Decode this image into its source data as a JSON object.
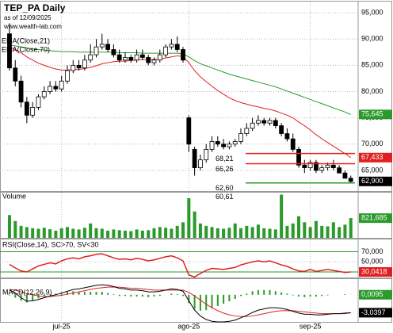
{
  "chart_data": {
    "type": "candlestick",
    "title": "TEP_PA Daily",
    "subtitle": "as of 12/09/2025",
    "source": "www.wealth-lab.com",
    "xlim": [
      -1.64,
      60.27
    ],
    "xticks": [
      {
        "value": 9,
        "label": "jul-25"
      },
      {
        "value": 31,
        "label": "ago-25"
      },
      {
        "value": 52,
        "label": "sep-25"
      }
    ],
    "price": {
      "ylim": [
        61.06,
        97.28
      ],
      "yticks": [
        {
          "value": 95,
          "label": "95,000"
        },
        {
          "value": 90,
          "label": "90,000"
        },
        {
          "value": 85,
          "label": "85,000"
        },
        {
          "value": 80,
          "label": "80,000"
        },
        {
          "value": 75,
          "label": "75,000"
        },
        {
          "value": 70,
          "label": "70,000"
        },
        {
          "value": 65,
          "label": "65,000"
        }
      ],
      "up_color": "#ffffff",
      "down_color": "#000000",
      "open": [
        91,
        84.5,
        82,
        78,
        75.5,
        77,
        79,
        80,
        81,
        80.5,
        82,
        84,
        85,
        84.5,
        86,
        87,
        88.5,
        89,
        88,
        87,
        86,
        86.5,
        86,
        87,
        86.5,
        85.5,
        86,
        87,
        88.5,
        89,
        88,
        75,
        69,
        65.5,
        67,
        69,
        70.5,
        70,
        69.5,
        70,
        70.5,
        72,
        73,
        74,
        74.5,
        74,
        74.5,
        73.5,
        72,
        71,
        69,
        66,
        65.5,
        66.5,
        65,
        65.5,
        66,
        65.5,
        64.5,
        63.5
      ],
      "high": [
        93,
        86,
        83,
        79,
        78,
        79.5,
        81,
        82,
        82,
        83,
        85,
        86,
        86,
        87,
        89,
        90,
        91,
        90,
        89,
        88,
        87.5,
        87,
        88,
        88,
        87,
        86.5,
        88,
        89,
        90,
        90.5,
        88.5,
        75.5,
        69.5,
        68,
        70,
        71.5,
        71.5,
        71,
        70.5,
        71,
        73,
        74,
        75,
        75.5,
        75,
        75,
        75,
        74,
        73,
        72,
        69.5,
        67,
        67,
        67,
        66,
        66.5,
        67,
        66,
        65,
        64
      ],
      "low": [
        84,
        81,
        77,
        74,
        75,
        76.5,
        78.5,
        79.5,
        80,
        80,
        81.5,
        83.5,
        84,
        84,
        85.5,
        86.5,
        88,
        87.5,
        86.5,
        85.5,
        85.5,
        85.5,
        85.5,
        86,
        85,
        85,
        85.5,
        86.5,
        88,
        87.5,
        85.5,
        68.5,
        64,
        65,
        66.5,
        68.5,
        69.5,
        69,
        69,
        69.5,
        70,
        71.5,
        72.5,
        73.5,
        73.5,
        73.5,
        73,
        71.5,
        70.5,
        68.5,
        65.5,
        64.5,
        65,
        64.5,
        64.5,
        65,
        65,
        64.5,
        63.5,
        62.5
      ],
      "close": [
        84.5,
        82,
        78,
        75.5,
        77,
        79,
        80,
        81,
        80.5,
        82,
        84,
        85,
        84.5,
        86,
        87,
        88.5,
        89,
        88,
        87,
        86,
        86.5,
        86,
        87,
        86.5,
        85.5,
        86,
        87,
        88.5,
        89,
        88,
        86,
        70,
        65.5,
        67,
        69,
        70.5,
        70,
        69.5,
        70,
        70.5,
        72,
        73,
        74,
        74.5,
        74,
        74.5,
        73.5,
        72,
        71,
        69,
        66,
        65.5,
        66.5,
        65,
        65.5,
        66,
        65.5,
        64.5,
        63.5,
        62.9
      ],
      "close_label": "62,900",
      "close_label_color": "#000000"
    },
    "ema": [
      {
        "name": "EMA(Close,21)",
        "color": "#e02020",
        "value_label": "67,433",
        "values": [
          88.5,
          88,
          87.4,
          86.6,
          86,
          85.4,
          85,
          84.6,
          84.3,
          84.1,
          84.1,
          84.2,
          84.2,
          84.4,
          84.6,
          84.9,
          85.3,
          85.5,
          85.7,
          85.8,
          85.8,
          85.9,
          86,
          86.1,
          86.1,
          86.1,
          86.2,
          86.4,
          86.6,
          86.8,
          86.7,
          85.5,
          84,
          82.8,
          81.9,
          81,
          80.2,
          79.5,
          78.8,
          78.3,
          77.9,
          77.6,
          77.3,
          77.1,
          76.8,
          76.6,
          76.3,
          75.9,
          75.5,
          75,
          74.2,
          73.5,
          72.7,
          71.8,
          71,
          70.3,
          69.6,
          68.9,
          68.2,
          67.433
        ]
      },
      {
        "name": "EMA(Close,70)",
        "color": "#2a9a2a",
        "value_label": "75,645",
        "values": [
          88.8,
          88.7,
          88.5,
          88.3,
          88.1,
          88,
          87.9,
          87.8,
          87.7,
          87.6,
          87.6,
          87.6,
          87.5,
          87.5,
          87.5,
          87.5,
          87.5,
          87.5,
          87.5,
          87.4,
          87.4,
          87.4,
          87.4,
          87.3,
          87.3,
          87.3,
          87.3,
          87.3,
          87.3,
          87.3,
          87.2,
          86.6,
          85.9,
          85.3,
          84.9,
          84.5,
          84.1,
          83.7,
          83.3,
          83,
          82.7,
          82.4,
          82.1,
          81.8,
          81.5,
          81.2,
          80.9,
          80.5,
          80.1,
          79.7,
          79.3,
          78.9,
          78.5,
          78.1,
          77.7,
          77.3,
          76.9,
          76.5,
          76.1,
          75.645
        ]
      }
    ],
    "levels": [
      {
        "value": 68.21,
        "label": "68,21",
        "color": "#e02020"
      },
      {
        "value": 66.26,
        "label": "66,26",
        "color": "#e02020"
      },
      {
        "value": 62.6,
        "label": "62,60",
        "color": "#2a9a2a"
      }
    ],
    "low_annotation": {
      "value": 60.61,
      "label": "60,61"
    },
    "volume": {
      "title": "Volume",
      "color": "#2a9a2a",
      "ylim": [
        0,
        1850000
      ],
      "value_label": "821,685",
      "values": [
        950000,
        700000,
        500000,
        450000,
        400000,
        380000,
        420000,
        360000,
        300000,
        400000,
        450000,
        380000,
        350000,
        420000,
        600000,
        400000,
        380000,
        300000,
        350000,
        320000,
        300000,
        280000,
        350000,
        300000,
        320000,
        400000,
        450000,
        420000,
        380000,
        500000,
        650000,
        1650000,
        1100000,
        600000,
        500000,
        450000,
        400000,
        380000,
        420000,
        600000,
        400000,
        500000,
        450000,
        550000,
        400000,
        380000,
        350000,
        1800000,
        500000,
        600000,
        900000,
        650000,
        450000,
        700000,
        500000,
        480000,
        650000,
        450000,
        550000,
        821685
      ]
    },
    "rsi": {
      "title": "RSI(Close,14), SC>70, SV<30",
      "color": "#e02020",
      "level_color": "#2a9a2a",
      "ylim": [
        19,
        96
      ],
      "yticks": [
        {
          "value": 70,
          "label": "70,000"
        },
        {
          "value": 50,
          "label": "50,000"
        },
        {
          "value": 30,
          "label": "30,000"
        }
      ],
      "levels": [
        70,
        30
      ],
      "value_label": "30,0418",
      "values": [
        45,
        38,
        32,
        30,
        36,
        42,
        45,
        48,
        46,
        52,
        56,
        58,
        56,
        60,
        62,
        65,
        66,
        62,
        58,
        55,
        56,
        54,
        57,
        55,
        52,
        54,
        57,
        60,
        62,
        58,
        52,
        24,
        20,
        27,
        33,
        37,
        36,
        35,
        37,
        39,
        44,
        47,
        50,
        52,
        50,
        52,
        48,
        44,
        41,
        36,
        32,
        31,
        35,
        31,
        33,
        35,
        33,
        31,
        29,
        30.0418
      ]
    },
    "macd": {
      "title": "MACD(12,26,9)",
      "ylim": [
        -4.6,
        2.8
      ],
      "macd": {
        "color": "#000000",
        "value_label": "-3,0397",
        "values": [
          0.8,
          0.3,
          -0.5,
          -1.1,
          -1.0,
          -0.8,
          -0.5,
          -0.2,
          0.0,
          0.3,
          0.6,
          0.9,
          1.0,
          1.2,
          1.4,
          1.6,
          1.7,
          1.6,
          1.4,
          1.1,
          1.0,
          0.8,
          0.8,
          0.7,
          0.5,
          0.5,
          0.6,
          0.8,
          1.0,
          0.9,
          0.6,
          -1.0,
          -2.6,
          -3.6,
          -4.2,
          -4.5,
          -4.6,
          -4.6,
          -4.5,
          -4.3,
          -3.9,
          -3.5,
          -3.0,
          -2.6,
          -2.4,
          -2.2,
          -2.2,
          -2.3,
          -2.5,
          -2.8,
          -3.1,
          -3.3,
          -3.3,
          -3.4,
          -3.4,
          -3.3,
          -3.2,
          -3.2,
          -3.1,
          -3.0397
        ]
      },
      "signal": {
        "color": "#e02020",
        "values": [
          0.9,
          0.8,
          0.5,
          0.2,
          0.0,
          -0.2,
          -0.3,
          -0.3,
          -0.2,
          -0.1,
          0.1,
          0.3,
          0.5,
          0.7,
          0.9,
          1.1,
          1.2,
          1.3,
          1.3,
          1.3,
          1.2,
          1.1,
          1.1,
          1.0,
          0.9,
          0.8,
          0.8,
          0.8,
          0.8,
          0.8,
          0.8,
          0.4,
          -0.2,
          -0.9,
          -1.6,
          -2.2,
          -2.7,
          -3.1,
          -3.4,
          -3.6,
          -3.7,
          -3.7,
          -3.6,
          -3.4,
          -3.2,
          -3.0,
          -2.8,
          -2.7,
          -2.7,
          -2.7,
          -2.8,
          -2.9,
          -3.0,
          -3.1,
          -3.2,
          -3.2,
          -3.2,
          -3.2,
          -3.2,
          -3.0492
        ]
      },
      "histogram": {
        "color": "#2a9a2a",
        "value_label": "0,0095",
        "values": [
          -0.1,
          -0.5,
          -1.0,
          -1.3,
          -1.0,
          -0.6,
          -0.2,
          0.1,
          0.2,
          0.4,
          0.5,
          0.6,
          0.5,
          0.5,
          0.5,
          0.5,
          0.5,
          0.3,
          0.1,
          -0.2,
          -0.2,
          -0.3,
          -0.3,
          -0.3,
          -0.4,
          -0.3,
          -0.2,
          0.0,
          0.2,
          0.1,
          -0.2,
          -1.4,
          -2.4,
          -2.7,
          -2.6,
          -2.3,
          -1.9,
          -1.5,
          -1.1,
          -0.7,
          -0.2,
          0.2,
          0.6,
          0.8,
          0.8,
          0.8,
          0.6,
          0.4,
          0.2,
          -0.1,
          -0.3,
          -0.4,
          -0.3,
          -0.3,
          -0.2,
          -0.1,
          0.0,
          0.0,
          0.1,
          0.0095
        ]
      }
    }
  }
}
